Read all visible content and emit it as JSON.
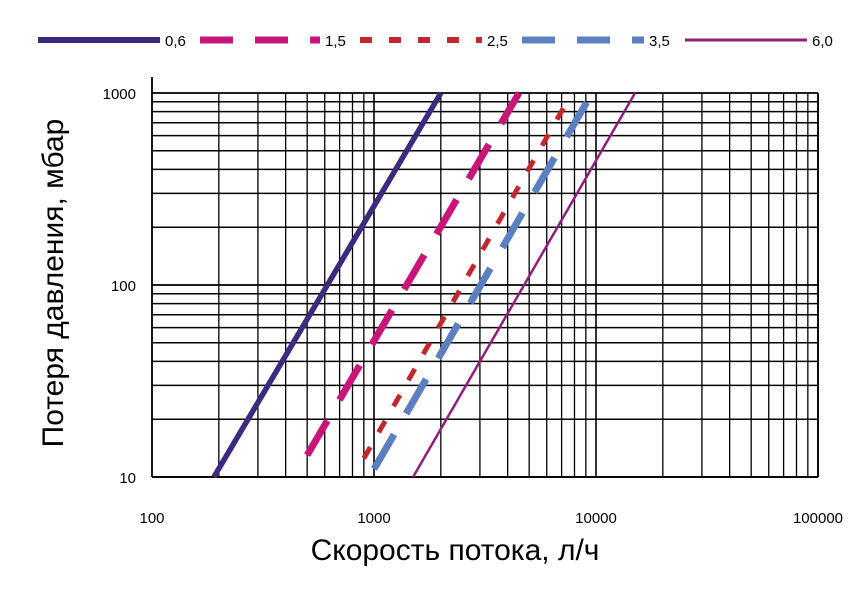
{
  "chart_data": {
    "type": "line",
    "xlabel": "Скорость потока, л/ч",
    "ylabel": "Потеря давления, мбар",
    "x_scale": "log",
    "y_scale": "log",
    "xlim": [
      100,
      100000
    ],
    "ylim": [
      10,
      1000
    ],
    "x_ticks": [
      100,
      1000,
      10000,
      100000
    ],
    "x_tick_labels": [
      "100",
      "1000",
      "10000",
      "100000"
    ],
    "y_ticks": [
      10,
      100,
      1000
    ],
    "y_tick_labels": [
      "10",
      "100",
      "1000"
    ],
    "grid": true,
    "legend_position": "top",
    "series": [
      {
        "name": "0,6",
        "color": "#3d2a7e",
        "style": "solid-thick",
        "points": [
          [
            190,
            10
          ],
          [
            2000,
            1000
          ]
        ]
      },
      {
        "name": "1,5",
        "color": "#c8157a",
        "style": "dashed-long",
        "points": [
          [
            500,
            13
          ],
          [
            4500,
            1000
          ]
        ]
      },
      {
        "name": "2,5",
        "color": "#c0282e",
        "style": "dashed-short",
        "points": [
          [
            900,
            12.5
          ],
          [
            7800,
            1000
          ]
        ]
      },
      {
        "name": "3,5",
        "color": "#5b7fc0",
        "style": "dashed-long",
        "points": [
          [
            1000,
            11
          ],
          [
            9600,
            1000
          ]
        ]
      },
      {
        "name": "6,0",
        "color": "#8e1f7e",
        "style": "solid-thin",
        "points": [
          [
            1500,
            10
          ],
          [
            15000,
            1000
          ]
        ]
      }
    ]
  }
}
